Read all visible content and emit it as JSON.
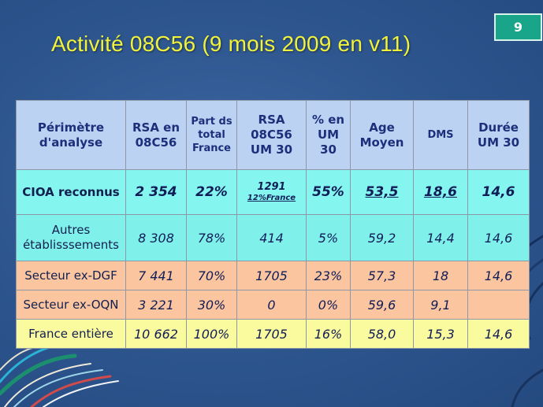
{
  "page_number": "9",
  "title": "Activité 08C56 (9 mois 2009 en v11)",
  "table": {
    "headers": [
      "Périmètre d'analyse",
      "RSA en 08C56",
      "Part ds total France",
      "RSA 08C56 UM 30",
      "% en UM 30",
      "Age Moyen",
      "DMS",
      "Durée UM 30"
    ],
    "rows": [
      {
        "label": "CIOA reconnus",
        "cells": [
          "2 354",
          "22%",
          "1291",
          "55%",
          "53,5",
          "18,6",
          "14,6"
        ],
        "note": "12%France"
      },
      {
        "label": "Autres établisssements",
        "cells": [
          "8 308",
          "78%",
          "414",
          "5%",
          "59,2",
          "14,4",
          "14,6"
        ]
      },
      {
        "label": "Secteur ex-DGF",
        "cells": [
          "7 441",
          "70%",
          "1705",
          "23%",
          "57,3",
          "18",
          "14,6"
        ]
      },
      {
        "label": "Secteur ex-OQN",
        "cells": [
          "3 221",
          "30%",
          "0",
          "0%",
          "59,6",
          "9,1",
          ""
        ]
      },
      {
        "label": "France entière",
        "cells": [
          "10 662",
          "100%",
          "1705",
          "16%",
          "58,0",
          "15,3",
          "14,6"
        ]
      }
    ]
  },
  "colors": {
    "background": "#2f5790",
    "title": "#f1f33b",
    "badge": "#19a58a",
    "header": "#bcd2f3",
    "row_cyan": "#85f5ef",
    "row_orange": "#fbc59f",
    "row_yellow": "#fafa9e"
  }
}
